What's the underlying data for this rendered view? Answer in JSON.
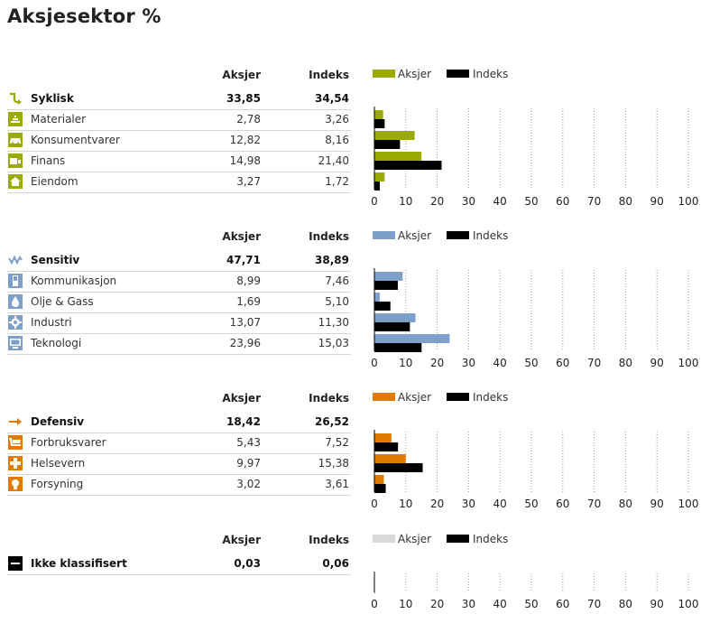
{
  "title": "Aksjesektor %",
  "column_headers": {
    "aksjer": "Aksjer",
    "indeks": "Indeks"
  },
  "legend": {
    "aksjer": "Aksjer",
    "indeks": "Indeks"
  },
  "index_color": "#000000",
  "sections": [
    {
      "name": "Syklisk",
      "aksjer": "33,85",
      "indeks": "34,54",
      "color": "#9aaa00",
      "icon": "cyclical-icon",
      "items": [
        {
          "name": "Materialer",
          "aksjer": "2,78",
          "indeks": "3,26",
          "icon": "materials-icon"
        },
        {
          "name": "Konsumentvarer",
          "aksjer": "12,82",
          "indeks": "8,16",
          "icon": "car-icon"
        },
        {
          "name": "Finans",
          "aksjer": "14,98",
          "indeks": "21,40",
          "icon": "finance-icon"
        },
        {
          "name": "Eiendom",
          "aksjer": "3,27",
          "indeks": "1,72",
          "icon": "house-icon"
        }
      ]
    },
    {
      "name": "Sensitiv",
      "aksjer": "47,71",
      "indeks": "38,89",
      "color": "#7d9fc9",
      "icon": "sensitive-icon",
      "items": [
        {
          "name": "Kommunikasjon",
          "aksjer": "8,99",
          "indeks": "7,46",
          "icon": "phone-icon"
        },
        {
          "name": "Olje & Gass",
          "aksjer": "1,69",
          "indeks": "5,10",
          "icon": "oil-drop-icon"
        },
        {
          "name": "Industri",
          "aksjer": "13,07",
          "indeks": "11,30",
          "icon": "gear-icon"
        },
        {
          "name": "Teknologi",
          "aksjer": "23,96",
          "indeks": "15,03",
          "icon": "computer-icon"
        }
      ]
    },
    {
      "name": "Defensiv",
      "aksjer": "18,42",
      "indeks": "26,52",
      "color": "#e07b00",
      "icon": "arrow-right-icon",
      "items": [
        {
          "name": "Forbruksvarer",
          "aksjer": "5,43",
          "indeks": "7,52",
          "icon": "cart-icon"
        },
        {
          "name": "Helsevern",
          "aksjer": "9,97",
          "indeks": "15,38",
          "icon": "health-cross-icon"
        },
        {
          "name": "Forsyning",
          "aksjer": "3,02",
          "indeks": "3,61",
          "icon": "lightbulb-icon"
        }
      ]
    },
    {
      "name": "Ikke klassifisert",
      "aksjer": "0,03",
      "indeks": "0,06",
      "color": "#d9d9d9",
      "icon": "unclassified-icon",
      "items": []
    }
  ],
  "chart_data": [
    {
      "type": "bar",
      "categories": [
        "Materialer",
        "Konsumentvarer",
        "Finans",
        "Eiendom"
      ],
      "series": [
        {
          "name": "Aksjer",
          "values": [
            2.78,
            12.82,
            14.98,
            3.27
          ]
        },
        {
          "name": "Indeks",
          "values": [
            3.26,
            8.16,
            21.4,
            1.72
          ]
        }
      ],
      "xlim": [
        0,
        100
      ],
      "xticks": [
        0,
        10,
        20,
        30,
        40,
        50,
        60,
        70,
        80,
        90,
        100
      ],
      "legend": "top-left",
      "grid": true
    },
    {
      "type": "bar",
      "categories": [
        "Kommunikasjon",
        "Olje & Gass",
        "Industri",
        "Teknologi"
      ],
      "series": [
        {
          "name": "Aksjer",
          "values": [
            8.99,
            1.69,
            13.07,
            23.96
          ]
        },
        {
          "name": "Indeks",
          "values": [
            7.46,
            5.1,
            11.3,
            15.03
          ]
        }
      ],
      "xlim": [
        0,
        100
      ],
      "xticks": [
        0,
        10,
        20,
        30,
        40,
        50,
        60,
        70,
        80,
        90,
        100
      ],
      "legend": "top-left",
      "grid": true
    },
    {
      "type": "bar",
      "categories": [
        "Forbruksvarer",
        "Helsevern",
        "Forsyning"
      ],
      "series": [
        {
          "name": "Aksjer",
          "values": [
            5.43,
            9.97,
            3.02
          ]
        },
        {
          "name": "Indeks",
          "values": [
            7.52,
            15.38,
            3.61
          ]
        }
      ],
      "xlim": [
        0,
        100
      ],
      "xticks": [
        0,
        10,
        20,
        30,
        40,
        50,
        60,
        70,
        80,
        90,
        100
      ],
      "legend": "top-left",
      "grid": true
    },
    {
      "type": "bar",
      "categories": [
        "Ikke klassifisert"
      ],
      "series": [
        {
          "name": "Aksjer",
          "values": [
            0.03
          ]
        },
        {
          "name": "Indeks",
          "values": [
            0.06
          ]
        }
      ],
      "xlim": [
        0,
        100
      ],
      "xticks": [
        0,
        10,
        20,
        30,
        40,
        50,
        60,
        70,
        80,
        90,
        100
      ],
      "legend": "top-left",
      "grid": true
    }
  ]
}
